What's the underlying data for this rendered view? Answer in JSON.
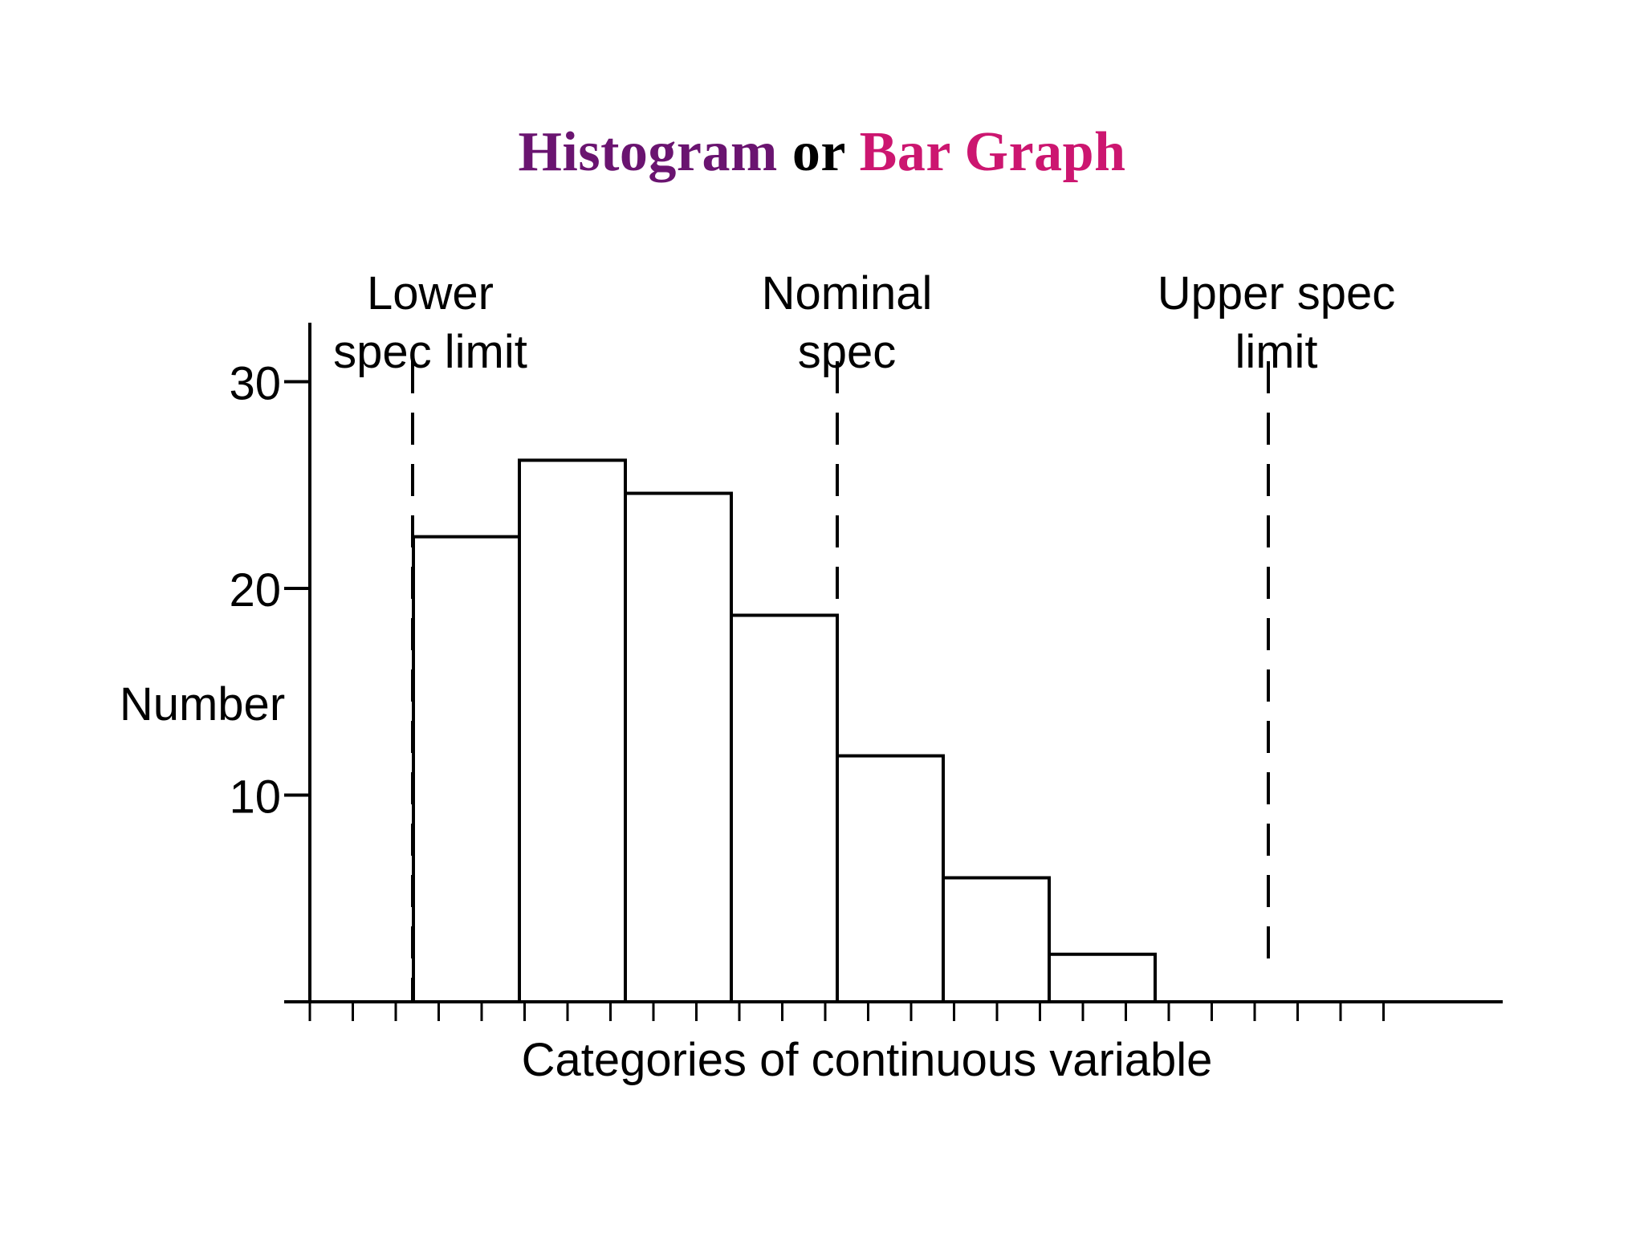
{
  "title": {
    "part1": "Histogram",
    "part2": "or",
    "part3": "Bar Graph",
    "part1_color": "#6a1470",
    "part3_color": "#cc1670"
  },
  "chart_data": {
    "type": "bar",
    "title": "Histogram or Bar Graph",
    "ylabel": "Number",
    "xlabel": "Categories of continuous variable",
    "ylim": [
      0,
      33
    ],
    "yticks": [
      10,
      20,
      30
    ],
    "categories": [
      "",
      "",
      "",
      "",
      "",
      "",
      ""
    ],
    "values": [
      22.5,
      26.2,
      24.6,
      18.7,
      11.9,
      6.0,
      2.3
    ],
    "bar_style": "outline",
    "grid": false,
    "spec_lines": [
      {
        "label_line1": "Lower",
        "label_line2": "spec limit",
        "style": "dashed"
      },
      {
        "label_line1": "Nominal",
        "label_line2": "spec",
        "style": "dashed"
      },
      {
        "label_line1": "Upper spec",
        "label_line2": "limit",
        "style": "dashed"
      }
    ]
  }
}
